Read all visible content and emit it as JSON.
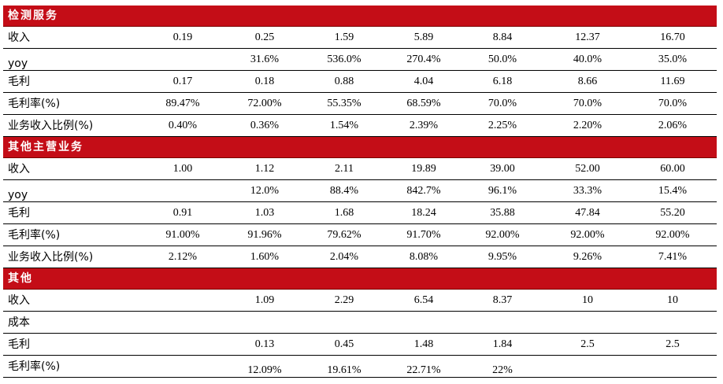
{
  "sections": [
    {
      "title": "检测服务",
      "rows": [
        {
          "label": "收入",
          "values": [
            "0.19",
            "0.25",
            "1.59",
            "5.89",
            "8.84",
            "12.37",
            "16.70"
          ]
        },
        {
          "label": "yoy",
          "values": [
            "",
            "31.6%",
            "536.0%",
            "270.4%",
            "50.0%",
            "40.0%",
            "35.0%"
          ]
        },
        {
          "label": "毛利",
          "values": [
            "0.17",
            "0.18",
            "0.88",
            "4.04",
            "6.18",
            "8.66",
            "11.69"
          ]
        },
        {
          "label": "毛利率(%)",
          "values": [
            "89.47%",
            "72.00%",
            "55.35%",
            "68.59%",
            "70.0%",
            "70.0%",
            "70.0%"
          ]
        },
        {
          "label": "业务收入比例(%)",
          "values": [
            "0.40%",
            "0.36%",
            "1.54%",
            "2.39%",
            "2.25%",
            "2.20%",
            "2.06%"
          ]
        }
      ]
    },
    {
      "title": "其他主营业务",
      "rows": [
        {
          "label": "收入",
          "values": [
            "1.00",
            "1.12",
            "2.11",
            "19.89",
            "39.00",
            "52.00",
            "60.00"
          ]
        },
        {
          "label": "yoy",
          "values": [
            "",
            "12.0%",
            "88.4%",
            "842.7%",
            "96.1%",
            "33.3%",
            "15.4%"
          ]
        },
        {
          "label": "毛利",
          "values": [
            "0.91",
            "1.03",
            "1.68",
            "18.24",
            "35.88",
            "47.84",
            "55.20"
          ]
        },
        {
          "label": "毛利率(%)",
          "values": [
            "91.00%",
            "91.96%",
            "79.62%",
            "91.70%",
            "92.00%",
            "92.00%",
            "92.00%"
          ]
        },
        {
          "label": "业务收入比例(%)",
          "values": [
            "2.12%",
            "1.60%",
            "2.04%",
            "8.08%",
            "9.95%",
            "9.26%",
            "7.41%"
          ]
        }
      ]
    },
    {
      "title": "其他",
      "rows": [
        {
          "label": "收入",
          "values": [
            "",
            "1.09",
            "2.29",
            "6.54",
            "8.37",
            "10",
            "10"
          ]
        },
        {
          "label": "成本",
          "values": [
            "",
            "",
            "",
            "",
            "",
            "",
            ""
          ]
        },
        {
          "label": "毛利",
          "values": [
            "",
            "0.13",
            "0.45",
            "1.48",
            "1.84",
            "2.5",
            "2.5"
          ]
        },
        {
          "label": "毛利率(%)",
          "values": [
            "",
            "12.09%",
            "19.61%",
            "22.71%",
            "22%",
            "",
            ""
          ]
        }
      ]
    }
  ]
}
